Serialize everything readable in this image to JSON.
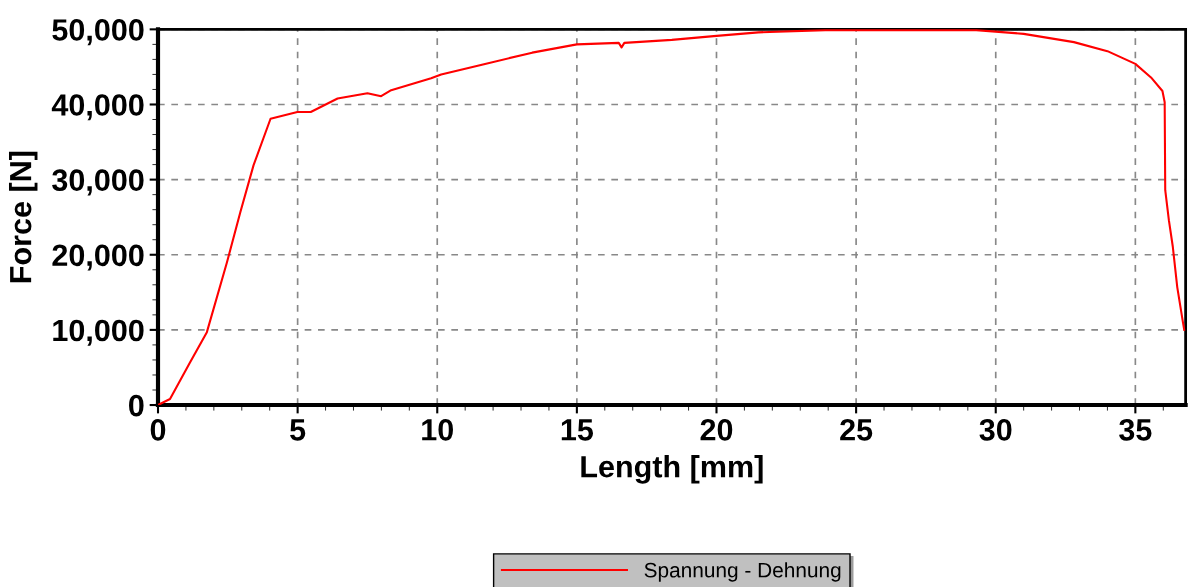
{
  "chart_data": {
    "type": "line",
    "xlabel": "Length [mm]",
    "ylabel": "Force [N]",
    "xlim": [
      0,
      36.8
    ],
    "ylim": [
      0,
      50000
    ],
    "xticks": [
      0,
      5,
      10,
      15,
      20,
      25,
      30,
      35
    ],
    "yticks": [
      {
        "value": 0,
        "label": "0"
      },
      {
        "value": 10000,
        "label": "10,000"
      },
      {
        "value": 20000,
        "label": "20,000"
      },
      {
        "value": 30000,
        "label": "30,000"
      },
      {
        "value": 40000,
        "label": "40,000"
      },
      {
        "value": 50000,
        "label": "50,000"
      }
    ],
    "grid": true,
    "legend": "bottom",
    "marker": "none",
    "line_style": "solid",
    "series": [
      {
        "name": "Spannung - Dehnung",
        "color": "#ff0000",
        "x": [
          0,
          0.43,
          1.15,
          1.75,
          2.47,
          2.95,
          3.42,
          4.03,
          4.99,
          5.47,
          6.43,
          7.5,
          7.99,
          8.35,
          9.78,
          10.14,
          11.6,
          13.4,
          15.0,
          16.5,
          16.6,
          16.7,
          18.4,
          19.9,
          21.5,
          23.9,
          25.0,
          29.3,
          31.0,
          32.8,
          34.0,
          35.0,
          35.56,
          35.97,
          36.05,
          36.07,
          36.2,
          36.34,
          36.5,
          36.7,
          36.75
        ],
        "values": [
          0,
          800,
          5700,
          9700,
          19000,
          25700,
          31900,
          38100,
          39000,
          39000,
          40800,
          41500,
          41100,
          41900,
          43500,
          44000,
          45300,
          46900,
          48000,
          48200,
          47600,
          48200,
          48600,
          49100,
          49600,
          49900,
          49900,
          49900,
          49400,
          48300,
          47100,
          45400,
          43600,
          41800,
          40300,
          28600,
          24600,
          21100,
          15700,
          11100,
          10000
        ]
      }
    ]
  }
}
